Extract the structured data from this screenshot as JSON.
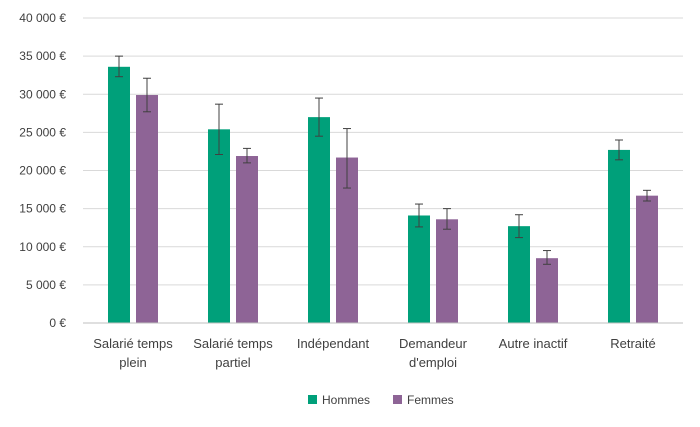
{
  "chart_data": {
    "type": "bar",
    "title": "",
    "xlabel": "",
    "ylabel": "",
    "ylim": [
      0,
      40000
    ],
    "y_ticks": [
      0,
      5000,
      10000,
      15000,
      20000,
      25000,
      30000,
      35000,
      40000
    ],
    "y_tick_labels": [
      "0 €",
      "5 000 €",
      "10 000 €",
      "15 000 €",
      "20 000 €",
      "25 000 €",
      "30 000 €",
      "35 000 €",
      "40 000 €"
    ],
    "grid": true,
    "legend_position": "bottom",
    "categories": [
      [
        "Salarié temps",
        "plein"
      ],
      [
        "Salarié temps",
        "partiel"
      ],
      [
        "Indépendant"
      ],
      [
        "Demandeur",
        "d'emploi"
      ],
      [
        "Autre inactif"
      ],
      [
        "Retraité"
      ]
    ],
    "series": [
      {
        "name": "Hommes",
        "color": "#00a07a",
        "values": [
          33600,
          25400,
          27000,
          14100,
          12700,
          22700
        ],
        "error_low": [
          32300,
          22100,
          24500,
          12600,
          11200,
          21400
        ],
        "error_high": [
          35000,
          28700,
          29500,
          15600,
          14200,
          24000
        ]
      },
      {
        "name": "Femmes",
        "color": "#8e6496",
        "values": [
          29900,
          21900,
          21700,
          13600,
          8500,
          16700
        ],
        "error_low": [
          27700,
          21000,
          17700,
          12300,
          7700,
          16000
        ],
        "error_high": [
          32100,
          22900,
          25500,
          15000,
          9500,
          17400
        ]
      }
    ]
  }
}
